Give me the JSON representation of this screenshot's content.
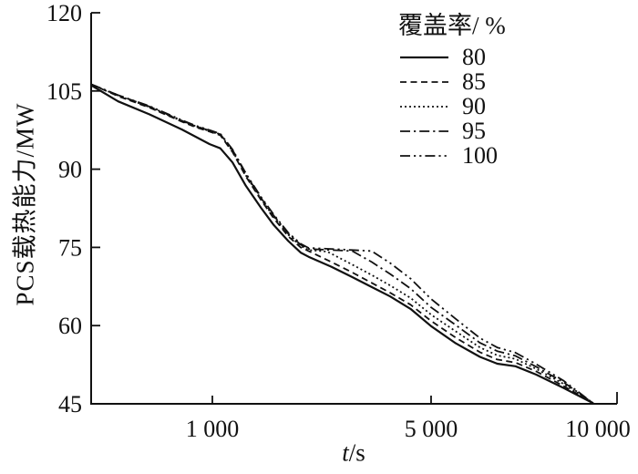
{
  "chart_data": {
    "type": "line",
    "title": "",
    "ylabel": "PCS载热能力/MW",
    "xlabel_variable": "t",
    "xlabel_unit": "/s",
    "legend_title": "覆盖率/ %",
    "legend_position": "top-right-inside",
    "grid": false,
    "axis_color": "#111111",
    "background_color": "#ffffff",
    "ylim": [
      45,
      120
    ],
    "xlim": [
      410,
      10000
    ],
    "y_ticks": [
      {
        "value": 120,
        "label": "120"
      },
      {
        "value": 105,
        "label": "105"
      },
      {
        "value": 90,
        "label": "90"
      },
      {
        "value": 75,
        "label": "75"
      },
      {
        "value": 60,
        "label": "60"
      },
      {
        "value": 45,
        "label": "45"
      }
    ],
    "x_ticks": [
      {
        "value": 1000,
        "label": "1 000"
      },
      {
        "value": 5000,
        "label": "5 000"
      },
      {
        "value": 10000,
        "label": "10 000"
      }
    ],
    "x_axis_fractions": [
      [
        410,
        0
      ],
      [
        1000,
        0.2305
      ],
      [
        5000,
        0.6464
      ],
      [
        10000,
        1.0
      ]
    ],
    "series": [
      {
        "name": "80",
        "line_style": "solid",
        "dash": "",
        "width": 2.2,
        "color": "#111111",
        "points": [
          [
            410,
            106.1
          ],
          [
            500,
            103.0
          ],
          [
            630,
            100.5
          ],
          [
            800,
            97.6
          ],
          [
            880,
            96.3
          ],
          [
            980,
            94.8
          ],
          [
            1060,
            94.0
          ],
          [
            1160,
            91.3
          ],
          [
            1280,
            86.8
          ],
          [
            1430,
            82.6
          ],
          [
            1570,
            79.3
          ],
          [
            1750,
            76.2
          ],
          [
            1915,
            74.0
          ],
          [
            2030,
            73.2
          ],
          [
            2400,
            71.3
          ],
          [
            2800,
            69.3
          ],
          [
            3230,
            67.4
          ],
          [
            3700,
            65.6
          ],
          [
            4300,
            63.2
          ],
          [
            5000,
            59.9
          ],
          [
            5480,
            56.6
          ],
          [
            6000,
            54.0
          ],
          [
            6400,
            52.7
          ],
          [
            6850,
            52.2
          ],
          [
            7400,
            50.6
          ],
          [
            8200,
            48.0
          ],
          [
            9150,
            45.1
          ]
        ]
      },
      {
        "name": "85",
        "line_style": "dashed",
        "dash": "7 4.5",
        "width": 1.8,
        "color": "#111111",
        "points": [
          [
            410,
            106.3
          ],
          [
            500,
            104.0
          ],
          [
            630,
            101.8
          ],
          [
            800,
            99.1
          ],
          [
            880,
            98.1
          ],
          [
            980,
            97.2
          ],
          [
            1060,
            96.5
          ],
          [
            1160,
            93.3
          ],
          [
            1280,
            88.6
          ],
          [
            1430,
            84.1
          ],
          [
            1570,
            80.6
          ],
          [
            1750,
            77.1
          ],
          [
            1915,
            75.0
          ],
          [
            2030,
            74.3
          ],
          [
            2400,
            72.2
          ],
          [
            2800,
            70.2
          ],
          [
            3230,
            68.2
          ],
          [
            3700,
            66.3
          ],
          [
            4300,
            64.0
          ],
          [
            5000,
            60.9
          ],
          [
            5480,
            57.7
          ],
          [
            6000,
            54.9
          ],
          [
            6400,
            53.5
          ],
          [
            6850,
            52.9
          ],
          [
            7400,
            51.2
          ],
          [
            8200,
            48.4
          ],
          [
            9150,
            45.1
          ]
        ]
      },
      {
        "name": "90",
        "line_style": "dotted",
        "dash": "2 3",
        "width": 1.8,
        "color": "#111111",
        "points": [
          [
            410,
            106.3
          ],
          [
            500,
            104.1
          ],
          [
            630,
            101.9
          ],
          [
            800,
            99.2
          ],
          [
            880,
            98.2
          ],
          [
            980,
            97.3
          ],
          [
            1060,
            96.6
          ],
          [
            1160,
            93.5
          ],
          [
            1280,
            88.8
          ],
          [
            1430,
            84.3
          ],
          [
            1570,
            80.9
          ],
          [
            1750,
            77.4
          ],
          [
            1915,
            75.3
          ],
          [
            2030,
            74.5
          ],
          [
            2330,
            74.2
          ],
          [
            2800,
            71.7
          ],
          [
            3230,
            69.7
          ],
          [
            3700,
            67.7
          ],
          [
            4300,
            65.3
          ],
          [
            5000,
            62.1
          ],
          [
            5480,
            58.9
          ],
          [
            6000,
            55.8
          ],
          [
            6400,
            54.3
          ],
          [
            6850,
            53.6
          ],
          [
            7400,
            51.7
          ],
          [
            8200,
            48.8
          ],
          [
            9150,
            45.1
          ]
        ]
      },
      {
        "name": "95",
        "line_style": "dash-dot",
        "dash": "11 4 2.2 4",
        "width": 1.8,
        "color": "#111111",
        "points": [
          [
            410,
            106.3
          ],
          [
            500,
            104.2
          ],
          [
            630,
            102.0
          ],
          [
            800,
            99.3
          ],
          [
            880,
            98.3
          ],
          [
            980,
            97.4
          ],
          [
            1060,
            96.7
          ],
          [
            1160,
            93.7
          ],
          [
            1280,
            89.0
          ],
          [
            1430,
            84.5
          ],
          [
            1570,
            81.1
          ],
          [
            1750,
            77.6
          ],
          [
            1915,
            75.5
          ],
          [
            2030,
            74.7
          ],
          [
            2400,
            74.5
          ],
          [
            2800,
            74.3
          ],
          [
            3230,
            72.2
          ],
          [
            3700,
            69.9
          ],
          [
            4300,
            67.1
          ],
          [
            5000,
            63.5
          ],
          [
            5480,
            60.1
          ],
          [
            6000,
            56.7
          ],
          [
            6400,
            55.1
          ],
          [
            6850,
            54.2
          ],
          [
            7400,
            52.1
          ],
          [
            8200,
            49.1
          ],
          [
            9150,
            45.1
          ]
        ]
      },
      {
        "name": "100",
        "line_style": "dash-dot-dot",
        "dash": "11 4 2.2 4 2.2 4",
        "width": 1.8,
        "color": "#111111",
        "points": [
          [
            410,
            106.3
          ],
          [
            500,
            104.2
          ],
          [
            630,
            102.1
          ],
          [
            800,
            99.4
          ],
          [
            880,
            98.4
          ],
          [
            980,
            97.5
          ],
          [
            1060,
            96.8
          ],
          [
            1160,
            93.8
          ],
          [
            1280,
            89.2
          ],
          [
            1430,
            84.7
          ],
          [
            1570,
            81.3
          ],
          [
            1750,
            77.8
          ],
          [
            1915,
            75.7
          ],
          [
            2030,
            74.9
          ],
          [
            2400,
            74.7
          ],
          [
            2800,
            74.5
          ],
          [
            3230,
            74.3
          ],
          [
            3700,
            72.0
          ],
          [
            4300,
            69.0
          ],
          [
            5000,
            65.1
          ],
          [
            5480,
            61.3
          ],
          [
            6000,
            57.6
          ],
          [
            6400,
            55.8
          ],
          [
            6850,
            54.8
          ],
          [
            7400,
            52.6
          ],
          [
            8200,
            49.4
          ],
          [
            9150,
            45.1
          ]
        ]
      }
    ]
  }
}
